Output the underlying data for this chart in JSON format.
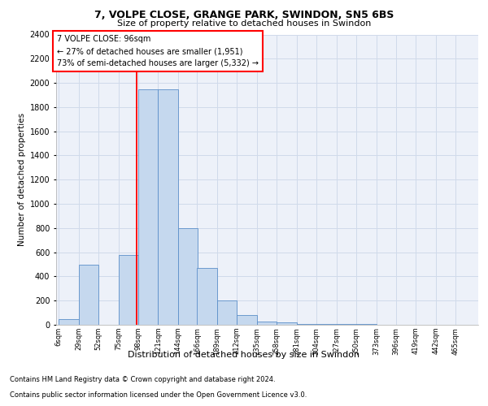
{
  "title_line1": "7, VOLPE CLOSE, GRANGE PARK, SWINDON, SN5 6BS",
  "title_line2": "Size of property relative to detached houses in Swindon",
  "xlabel": "Distribution of detached houses by size in Swindon",
  "ylabel": "Number of detached properties",
  "footer_line1": "Contains HM Land Registry data © Crown copyright and database right 2024.",
  "footer_line2": "Contains public sector information licensed under the Open Government Licence v3.0.",
  "annotation_line1": "7 VOLPE CLOSE: 96sqm",
  "annotation_line2": "← 27% of detached houses are smaller (1,951)",
  "annotation_line3": "73% of semi-detached houses are larger (5,332) →",
  "bar_color": "#c5d8ee",
  "bar_edge_color": "#5b8fc9",
  "grid_color": "#d0daea",
  "red_line_x": 96,
  "categories": [
    "6sqm",
    "29sqm",
    "52sqm",
    "75sqm",
    "98sqm",
    "121sqm",
    "144sqm",
    "166sqm",
    "189sqm",
    "212sqm",
    "235sqm",
    "258sqm",
    "281sqm",
    "304sqm",
    "327sqm",
    "350sqm",
    "373sqm",
    "396sqm",
    "419sqm",
    "442sqm",
    "465sqm"
  ],
  "bin_edges": [
    6,
    29,
    52,
    75,
    98,
    121,
    144,
    166,
    189,
    212,
    235,
    258,
    281,
    304,
    327,
    350,
    373,
    396,
    419,
    442,
    465
  ],
  "values": [
    50,
    500,
    0,
    580,
    1950,
    1950,
    800,
    470,
    200,
    80,
    30,
    20,
    5,
    5,
    5,
    5,
    0,
    0,
    0,
    0
  ],
  "ylim": [
    0,
    2400
  ],
  "yticks": [
    0,
    200,
    400,
    600,
    800,
    1000,
    1200,
    1400,
    1600,
    1800,
    2000,
    2200,
    2400
  ],
  "background_color": "#edf1f9"
}
